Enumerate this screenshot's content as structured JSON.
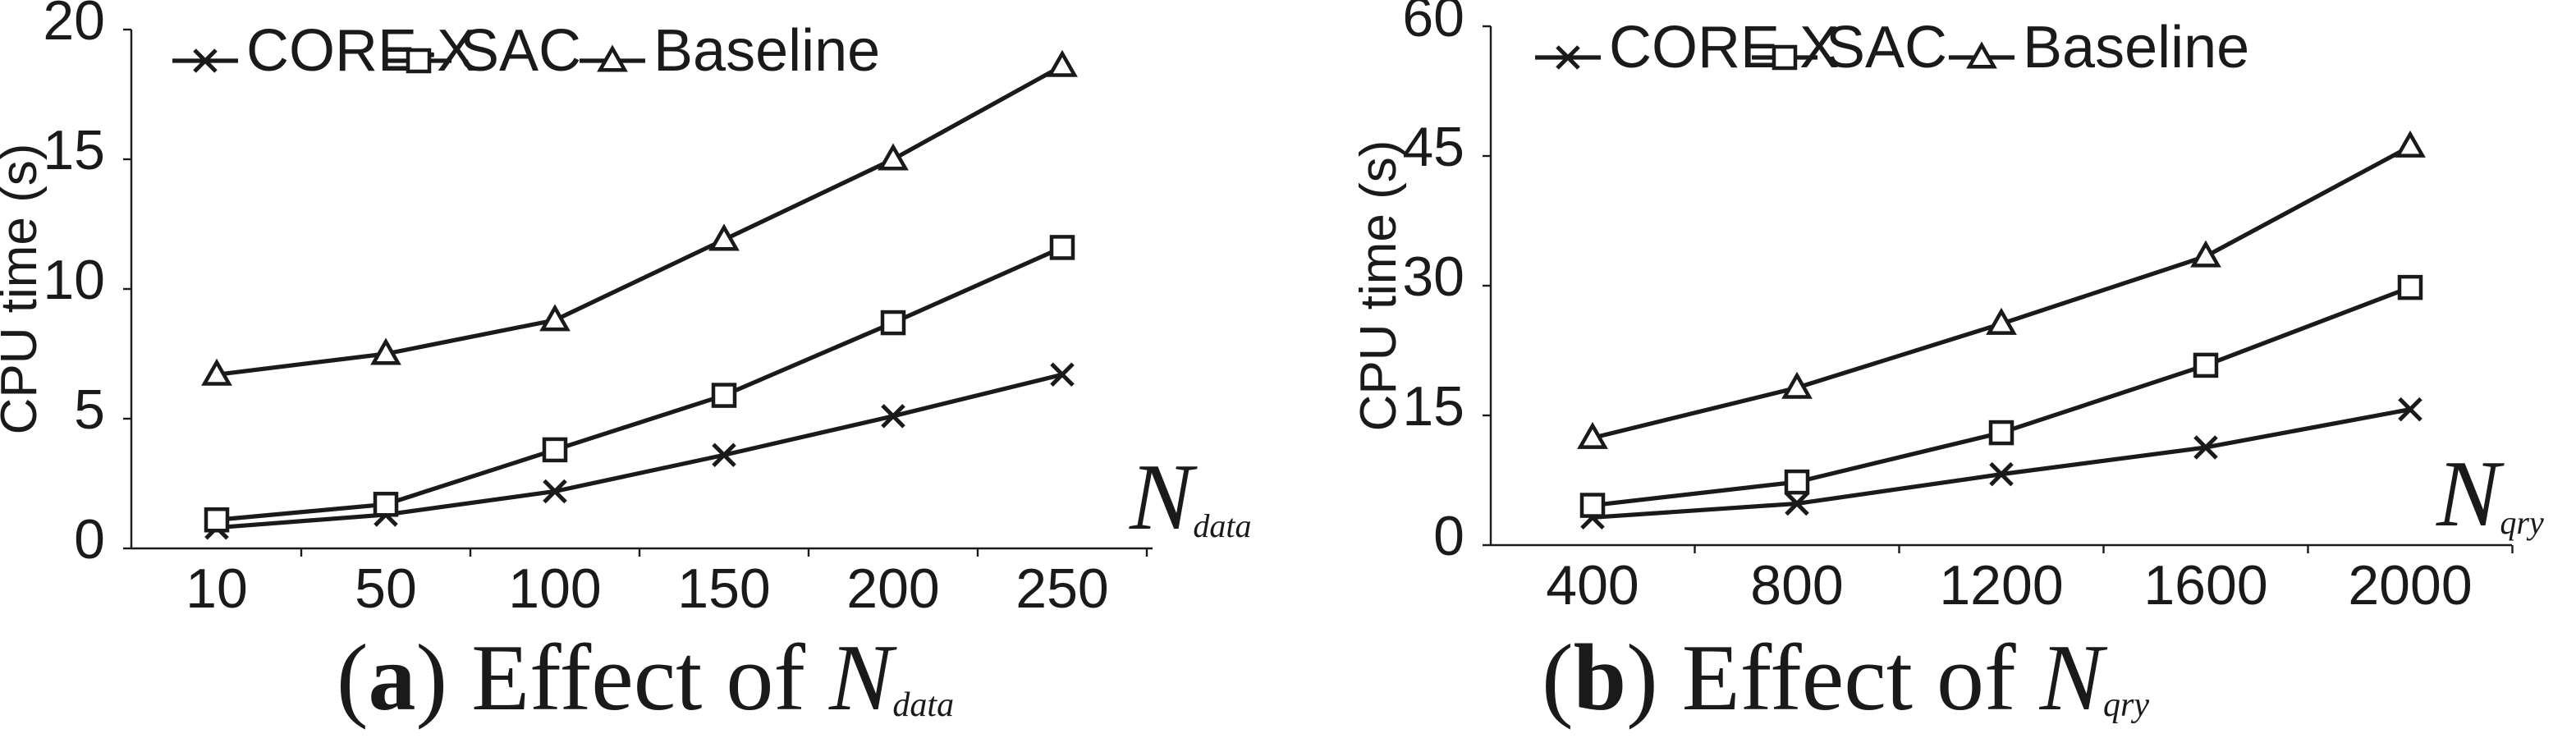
{
  "chart_data": [
    {
      "type": "line",
      "panel_label": "a",
      "caption_prefix": "Effect of",
      "caption_var": "N",
      "caption_sub": "data",
      "x_var_main": "N",
      "x_var_sub": "data",
      "ylabel": "CPU time (s)",
      "categories": [
        "10",
        "50",
        "100",
        "150",
        "200",
        "250"
      ],
      "ylim": [
        0,
        20
      ],
      "yticks": [
        0,
        5,
        10,
        15,
        20
      ],
      "legend_position": "top-left",
      "series": [
        {
          "name": "CORE-X",
          "marker": "x",
          "values": [
            0.8,
            1.3,
            2.2,
            3.6,
            5.1,
            6.7
          ]
        },
        {
          "name": "SAC",
          "marker": "square",
          "values": [
            1.1,
            1.7,
            3.8,
            5.9,
            8.7,
            11.6
          ]
        },
        {
          "name": "Baseline",
          "marker": "triangle",
          "values": [
            6.7,
            7.5,
            8.8,
            11.9,
            15.0,
            18.6
          ]
        }
      ]
    },
    {
      "type": "line",
      "panel_label": "b",
      "caption_prefix": "Effect of",
      "caption_var": "N",
      "caption_sub": "qry",
      "x_var_main": "N",
      "x_var_sub": "qry",
      "ylabel": "CPU time (s)",
      "categories": [
        "400",
        "800",
        "1200",
        "1600",
        "2000"
      ],
      "ylim": [
        0,
        60
      ],
      "yticks": [
        0,
        15,
        30,
        45,
        60
      ],
      "legend_position": "top-left",
      "series": [
        {
          "name": "CORE-X",
          "marker": "x",
          "values": [
            3.2,
            4.8,
            8.2,
            11.3,
            15.7
          ]
        },
        {
          "name": "SAC",
          "marker": "square",
          "values": [
            4.6,
            7.3,
            13.0,
            20.8,
            29.8
          ]
        },
        {
          "name": "Baseline",
          "marker": "triangle",
          "values": [
            12.4,
            18.2,
            25.6,
            33.4,
            46.1
          ]
        }
      ]
    }
  ]
}
